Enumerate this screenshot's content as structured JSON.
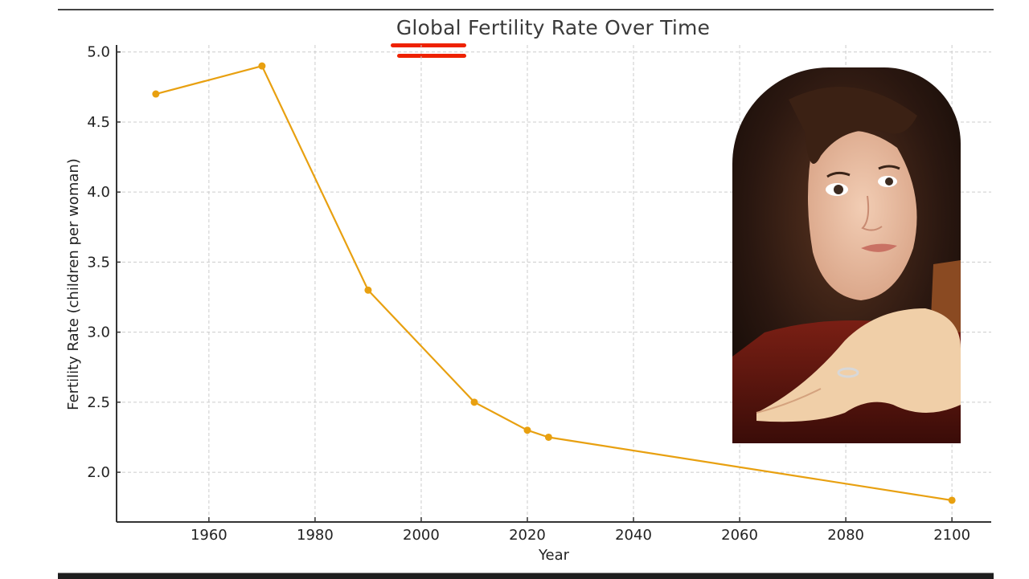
{
  "chart_data": {
    "type": "line",
    "title": "Global Fertility Rate Over Time",
    "xlabel": "Year",
    "ylabel": "Fertility Rate (children per woman)",
    "x": [
      1950,
      1970,
      1990,
      2010,
      2020,
      2024,
      2100
    ],
    "series": [
      {
        "name": "Fertility Rate",
        "values": [
          4.7,
          4.9,
          3.3,
          2.5,
          2.3,
          2.25,
          1.8
        ],
        "color": "#E8A010"
      }
    ],
    "xticks": [
      1960,
      1980,
      2000,
      2020,
      2040,
      2060,
      2080,
      2100
    ],
    "yticks": [
      2.0,
      2.5,
      3.0,
      3.5,
      4.0,
      4.5,
      5.0
    ],
    "xlim": [
      1942.6,
      2107.4
    ],
    "ylim": [
      1.645,
      5.05
    ],
    "grid": true,
    "legend": null,
    "annotations": [
      "red hand-drawn double underline beneath 'Global' in title",
      "photo of a woman pointing at the chart"
    ]
  },
  "labels": {
    "title": "Global Fertility Rate Over Time",
    "xlabel": "Year",
    "ylabel": "Fertility Rate (children per woman)",
    "xticks": [
      "1960",
      "1980",
      "2000",
      "2020",
      "2040",
      "2060",
      "2080",
      "2100"
    ],
    "yticks": [
      "2.0",
      "2.5",
      "3.0",
      "3.5",
      "4.0",
      "4.5",
      "5.0"
    ]
  },
  "colors": {
    "line": "#E8A010",
    "underline": "#EE2200",
    "grid": "#cccccc",
    "axis": "#333333"
  }
}
